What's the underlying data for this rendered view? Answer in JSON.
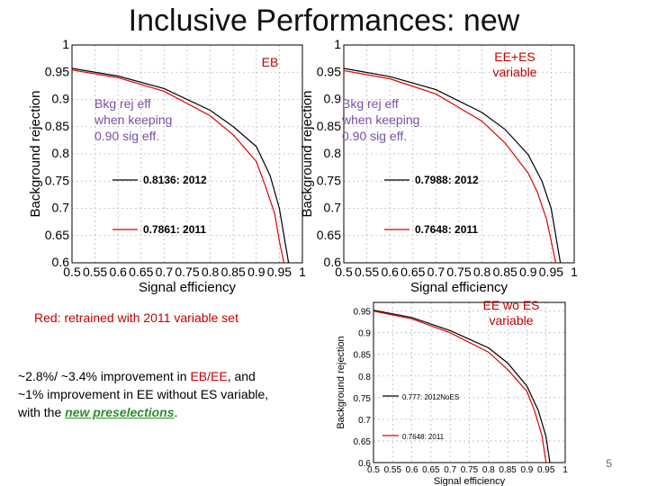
{
  "title": "Inclusive Performances:  new",
  "note_text": [
    "Bkg rej eff",
    "when keeping",
    "0.90 sig eff."
  ],
  "red_note": "Red:  retrained  with 2011 variable set",
  "improvement": {
    "p1": "~2.8%/ ~3.4% improvement in ",
    "p2": "EB/EE",
    "p3": ",  and",
    "line2": "~1% improvement  in EE without ES variable,",
    "p4": "with the ",
    "p5": "new preselections",
    "p6": "."
  },
  "page_number": "5",
  "colors": {
    "black_curve": "#000000",
    "red_curve": "#e00000",
    "region_label": "#c00000",
    "note": "#7b4fa3"
  },
  "chart_data": [
    {
      "type": "line",
      "region_label": "EB",
      "xlabel": "Signal efficiency",
      "ylabel": "Background rejection",
      "xlim": [
        0.5,
        1.0
      ],
      "ylim": [
        0.6,
        1.0
      ],
      "x_ticks": [
        "0.5",
        "0.55",
        "0.6",
        "0.65",
        "0.7",
        "0.75",
        "0.8",
        "0.85",
        "0.9",
        "0.95",
        "1"
      ],
      "y_ticks": [
        "0.6",
        "0.65",
        "0.7",
        "0.75",
        "0.8",
        "0.85",
        "0.9",
        "0.95",
        "1"
      ],
      "series": [
        {
          "name": "0.8136: 2012",
          "color": "#000000",
          "x": [
            0.5,
            0.6,
            0.7,
            0.8,
            0.85,
            0.9,
            0.93,
            0.95,
            0.96,
            0.97
          ],
          "y": [
            0.957,
            0.943,
            0.92,
            0.88,
            0.85,
            0.8136,
            0.76,
            0.7,
            0.65,
            0.6
          ]
        },
        {
          "name": "0.7861: 2011",
          "color": "#e00000",
          "x": [
            0.5,
            0.6,
            0.7,
            0.8,
            0.85,
            0.9,
            0.92,
            0.94,
            0.95,
            0.96
          ],
          "y": [
            0.954,
            0.94,
            0.915,
            0.87,
            0.835,
            0.7861,
            0.74,
            0.69,
            0.64,
            0.6
          ]
        }
      ]
    },
    {
      "type": "line",
      "region_label": "EE+ES variable",
      "region_label_lines": [
        "EE+ES",
        "variable"
      ],
      "xlabel": "Signal efficiency",
      "ylabel": "Background rejection",
      "xlim": [
        0.5,
        1.0
      ],
      "ylim": [
        0.6,
        1.0
      ],
      "x_ticks": [
        "0.5",
        "0.55",
        "0.6",
        "0.65",
        "0.7",
        "0.75",
        "0.8",
        "0.85",
        "0.9",
        "0.95",
        "1"
      ],
      "y_ticks": [
        "0.6",
        "0.65",
        "0.7",
        "0.75",
        "0.8",
        "0.85",
        "0.9",
        "0.95",
        "1"
      ],
      "series": [
        {
          "name": "0.7988: 2012",
          "color": "#000000",
          "x": [
            0.5,
            0.6,
            0.7,
            0.8,
            0.85,
            0.9,
            0.93,
            0.95,
            0.96,
            0.97
          ],
          "y": [
            0.957,
            0.942,
            0.918,
            0.876,
            0.845,
            0.7988,
            0.75,
            0.7,
            0.65,
            0.6
          ]
        },
        {
          "name": "0.7648: 2011",
          "color": "#e00000",
          "x": [
            0.5,
            0.6,
            0.7,
            0.8,
            0.85,
            0.9,
            0.92,
            0.94,
            0.95,
            0.96
          ],
          "y": [
            0.953,
            0.938,
            0.91,
            0.86,
            0.82,
            0.7648,
            0.73,
            0.68,
            0.64,
            0.6
          ]
        }
      ]
    },
    {
      "type": "line",
      "region_label": "EE wo ES variable",
      "region_label_lines": [
        "EE wo ES",
        "variable"
      ],
      "xlabel": "Signal efficiency",
      "ylabel": "Background rejection",
      "xlim": [
        0.5,
        1.0
      ],
      "ylim": [
        0.6,
        0.97
      ],
      "x_ticks": [
        "0.5",
        "0.55",
        "0.6",
        "0.65",
        "0.7",
        "0.75",
        "0.8",
        "0.85",
        "0.9",
        "0.95",
        "1"
      ],
      "y_ticks": [
        "0.6",
        "0.65",
        "0.7",
        "0.75",
        "0.8",
        "0.85",
        "0.9",
        "0.95"
      ],
      "series": [
        {
          "name": "0.777: 2012NoES",
          "color": "#000000",
          "x": [
            0.5,
            0.6,
            0.7,
            0.8,
            0.85,
            0.9,
            0.93,
            0.95,
            0.96
          ],
          "y": [
            0.952,
            0.935,
            0.905,
            0.865,
            0.83,
            0.777,
            0.72,
            0.66,
            0.6
          ]
        },
        {
          "name": "0.7648: 2011",
          "color": "#e00000",
          "x": [
            0.5,
            0.6,
            0.7,
            0.8,
            0.85,
            0.9,
            0.92,
            0.94,
            0.95
          ],
          "y": [
            0.95,
            0.932,
            0.9,
            0.855,
            0.815,
            0.7648,
            0.72,
            0.66,
            0.6
          ]
        }
      ]
    }
  ]
}
